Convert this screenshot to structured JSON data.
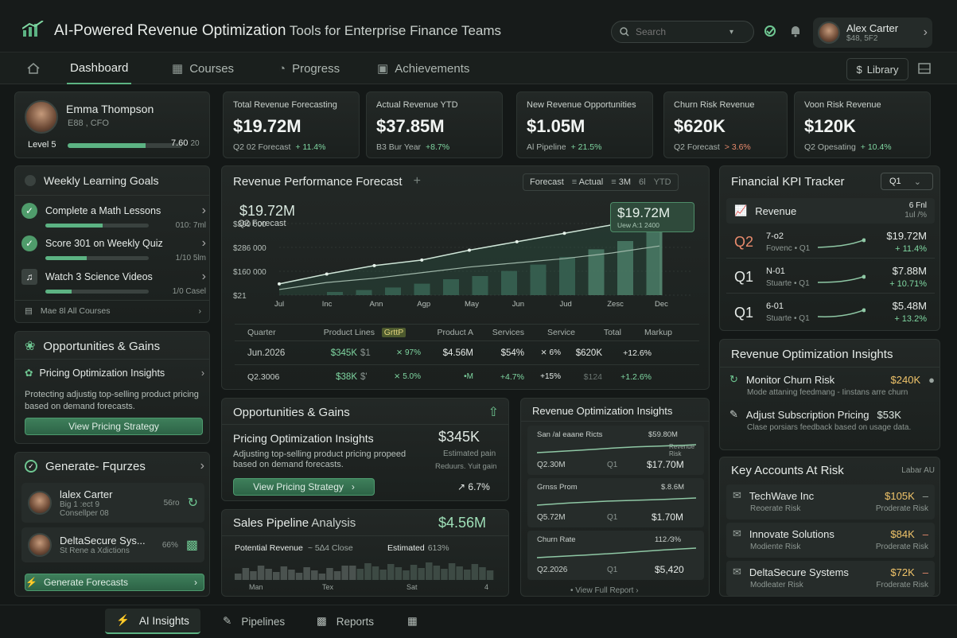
{
  "header": {
    "title_main": "AI-Powered Revenue Optimization",
    "title_rest": " Tools for Enterprise Finance Teams",
    "search_placeholder": "Search",
    "user_name": "Alex Carter",
    "user_sub": "$48, 5F2"
  },
  "nav": {
    "tabs": [
      "Dashboard",
      "Courses",
      "Progress",
      "Achievements"
    ],
    "library": "Library"
  },
  "profile": {
    "name": "Emma Thompson",
    "role": "E88 , CFO",
    "level": "Level 5",
    "xp": "7.60",
    "xp_max": "20",
    "progress": 0.68
  },
  "kpis": [
    {
      "title": "Total Revenue Forecasting",
      "value": "$19.72M",
      "sub": "Q2 02 Forecast",
      "delta": "+ 11.4%"
    },
    {
      "title": "Actual Revenue YTD",
      "value": "$37.85M",
      "sub": "B3 Bur Year",
      "delta": "+8.7%"
    },
    {
      "title": "New Revenue Opportunities",
      "value": "$1.05M",
      "sub": "Al Pipeline",
      "delta": "+ 21.5%"
    },
    {
      "title": "Churn Risk Revenue",
      "value": "$620K",
      "sub": "Q2 Forecast",
      "delta": "> 3.6%"
    },
    {
      "title": "Voon Risk Revenue",
      "value": "$120K",
      "sub": "Q2 Opesating",
      "delta": "+ 10.4%"
    }
  ],
  "goals": {
    "title": "Weekly Learning Goals",
    "items": [
      {
        "label": "Complete a Math Lessons",
        "meta": "010: 7ml",
        "progress": 0.55
      },
      {
        "label": "Score 301 on Weekly Quiz",
        "meta": "1/10  5lm",
        "progress": 0.4
      },
      {
        "label": "Watch 3 Science Videos",
        "meta": "1/0  Casel",
        "progress": 0.25
      }
    ],
    "footer": "Mae 8l All Courses"
  },
  "opps_left": {
    "title": "Opportunities & Gains",
    "item": "Pricing Optimization Insights",
    "desc": "Protecting adjustig top-selling product pricing based on demand forecasts.",
    "button": "View Pricing Strategy"
  },
  "gen": {
    "title": "Generate- Fqurzes",
    "people": [
      {
        "name": "lalex Carter",
        "sub1": "Big 1 :ect 9",
        "sub2": "Consellper 08",
        "pct": "56ro"
      },
      {
        "name": "DeltaSecure Sys...",
        "sub1": "St Rene a Xdictions",
        "sub2": "",
        "pct": "66%"
      }
    ],
    "button": "Generate Forecasts"
  },
  "forecast": {
    "title": "Revenue Performance Forecast",
    "toggles": [
      "Forecast",
      "Actual",
      "3M",
      "6l",
      "YTD"
    ],
    "big": "$19.72M",
    "big_sub": "Q2 Forecast",
    "callout": "$19.72M",
    "callout_sub": "Uew  A:1 2400"
  },
  "chart_data": {
    "type": "line",
    "title": "Revenue Performance Forecast",
    "x": [
      "Jul",
      "Inc",
      "Ann",
      "Agp",
      "May",
      "Jun",
      "Jud",
      "Zesc",
      "Dec"
    ],
    "yticks": [
      "$399 000",
      "$286 000",
      "$160 000",
      "$21"
    ],
    "series": [
      {
        "name": "Forecast",
        "values": [
          40,
          75,
          105,
          125,
          160,
          190,
          220,
          250,
          295
        ]
      },
      {
        "name": "Actual",
        "values": [
          20,
          45,
          60,
          80,
          100,
          115,
          130,
          150,
          175
        ]
      }
    ],
    "bars": [
      5,
      8,
      12,
      18,
      25,
      30,
      38,
      48,
      60,
      72,
      85,
      100
    ]
  },
  "table": {
    "headers": [
      "Quarter",
      "Product Lines",
      "GrttP",
      "Product A",
      "Services",
      "Service",
      "Total",
      "Markup"
    ],
    "rows": [
      [
        "Jun.2026",
        "$345K",
        "$1",
        "⨯ 97%",
        "$4.56M",
        "$54%",
        "⨯ 6%",
        "$620K",
        "+12.6%"
      ],
      [
        "Q2.3006",
        "$38K",
        "$'",
        "⨯ 5.0%",
        "•M",
        "+4.7%",
        "+15%",
        "$124",
        "+1.2.6%"
      ]
    ]
  },
  "opps_mid": {
    "title": "Opportunities & Gains",
    "item": "Pricing Optimization Insights",
    "value": "$345K",
    "desc": "Adjusting top-selling product pricing propeed based on demand forecasts.",
    "note1": "Estimated pain",
    "note2": "Reduurs. Yuit gain",
    "button": "View Pricing Strategy",
    "pct": "6.7%"
  },
  "pipeline": {
    "title": "Sales Pipeline",
    "title2": " Analysis",
    "value": "$4.56M",
    "col1": "Potential Revenue",
    "col2": "~ 5∆4 Close",
    "col3": "Estimated",
    "col4": "613%",
    "labels": [
      "Man",
      "Tex",
      "Sat",
      "4"
    ]
  },
  "roi": {
    "title": "Revenue Optimization Insights",
    "cards": [
      {
        "name": "San /al eaane Ricts",
        "top": "$59.80M",
        "tag": "Revenue Risk",
        "q": "Q2.30M",
        "q2": "Q1",
        "value": "$17.70M"
      },
      {
        "name": "Grnss Prom",
        "top": "$.8.6M",
        "tag": "",
        "q": "Q5.72M",
        "q2": "Q1",
        "value": "$1.70M"
      },
      {
        "name": "Churn Rate",
        "top": "112 ⁄3%",
        "tag": "",
        "q": "Q2.2026",
        "q2": "Q1",
        "value": "$5,420"
      }
    ],
    "footer": "View Full Report"
  },
  "kpi_tracker": {
    "title": "Financial KPI Tracker",
    "select": "Q1",
    "head": "Revenue",
    "head_r1": "6 Fnl",
    "head_r2": "1ul /%",
    "rows": [
      {
        "q": "Q2",
        "a": "7-o2",
        "b": "Fovenc • Q1",
        "v": "$19.72M",
        "d": "+ 11.4%"
      },
      {
        "q": "Q1",
        "a": "N-01",
        "b": "Stuarte • Q1",
        "v": "$7.88M",
        "d": "+ 10.71%"
      },
      {
        "q": "Q1",
        "a": "6-01",
        "b": "Stuarte • Q1",
        "v": "$5.48M",
        "d": "+ 13.2%"
      }
    ]
  },
  "roi_right": {
    "title": "Revenue Optimization Insights",
    "items": [
      {
        "name": "Monitor Churn Risk",
        "value": "$240K",
        "desc": "Mode attaning feedmang - Iinstans arre churn"
      },
      {
        "name": "Adjust Subscription Pricing",
        "value": "$53K",
        "desc": "Clase porsiars feedback based on usage data."
      }
    ]
  },
  "accounts": {
    "title": "Key Accounts At Risk",
    "tag": "Labar AU",
    "items": [
      {
        "name": "TechWave Inc",
        "sub": "Reoerate Risk",
        "value": "$105K",
        "risk": "Proderate Risk"
      },
      {
        "name": "Innovate Solutions",
        "sub": "Modiente Risk",
        "value": "$84K",
        "risk": "Proderate Risk"
      },
      {
        "name": "DeltaSecure Systems",
        "sub": "Modleater Risk",
        "value": "$72K",
        "risk": "Froderate Risk"
      }
    ]
  },
  "bottom": {
    "tabs": [
      "AI Insights",
      "Pipelines",
      "Reports"
    ]
  }
}
